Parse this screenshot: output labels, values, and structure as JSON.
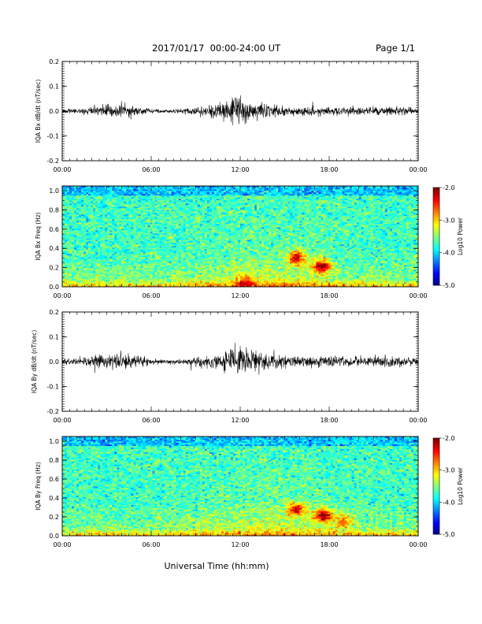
{
  "header": {
    "title": "2017/01/17  00:00-24:00 UT",
    "page": "Page 1/1"
  },
  "chart_data": [
    {
      "type": "line",
      "ylabel": "IQA Bx dB/dt (nT/sec)",
      "xlim": [
        "00:00",
        "24:00"
      ],
      "ylim": [
        -0.2,
        0.2
      ],
      "xticks": [
        "00:00",
        "06:00",
        "12:00",
        "18:00",
        "00:00"
      ],
      "yticks": [
        "-0.2",
        "-0.1",
        "0.0",
        "0.1",
        "0.2"
      ],
      "envelope_x_hours": [
        0,
        1,
        2,
        3,
        4,
        5,
        6,
        7,
        8,
        9,
        10,
        11,
        11.5,
        12,
        12.5,
        13,
        14,
        15,
        16,
        17,
        18,
        19,
        20,
        21,
        22,
        23,
        24
      ],
      "envelope_amplitude": [
        0.01,
        0.012,
        0.022,
        0.03,
        0.042,
        0.028,
        0.012,
        0.01,
        0.012,
        0.018,
        0.035,
        0.05,
        0.07,
        0.085,
        0.06,
        0.045,
        0.03,
        0.025,
        0.022,
        0.025,
        0.022,
        0.02,
        0.022,
        0.024,
        0.025,
        0.022,
        0.018
      ]
    },
    {
      "type": "heatmap",
      "ylabel": "IQA Bx Freq (Hz)",
      "xlim": [
        "00:00",
        "24:00"
      ],
      "ylim": [
        0,
        1.05
      ],
      "xticks": [
        "00:00",
        "06:00",
        "12:00",
        "18:00",
        "00:00"
      ],
      "yticks": [
        "0.0",
        "0.2",
        "0.4",
        "0.6",
        "0.8",
        "1.0"
      ],
      "colorbar_label": "Log10 Power",
      "colorbar_ticks": [
        "-2.0",
        "-3.0",
        "-4.0",
        "-5.0"
      ],
      "zlim": [
        -5.0,
        -2.0
      ],
      "background_level": -3.7,
      "hotspots": [
        {
          "t_hours": 15.8,
          "f_hz": 0.3,
          "level": -2.4
        },
        {
          "t_hours": 17.5,
          "f_hz": 0.22,
          "level": -2.2
        },
        {
          "t_hours": 12.3,
          "f_hz": 0.05,
          "level": -2.9
        }
      ]
    },
    {
      "type": "line",
      "ylabel": "IQA By dB/dt (nT/sec)",
      "xlim": [
        "00:00",
        "24:00"
      ],
      "ylim": [
        -0.2,
        0.2
      ],
      "xticks": [
        "00:00",
        "06:00",
        "12:00",
        "18:00",
        "00:00"
      ],
      "yticks": [
        "-0.2",
        "-0.1",
        "0.0",
        "0.1",
        "0.2"
      ],
      "envelope_x_hours": [
        0,
        1,
        2,
        3,
        4,
        5,
        6,
        7,
        8,
        9,
        10,
        11,
        11.5,
        12,
        12.5,
        13,
        14,
        15,
        16,
        17,
        18,
        19,
        20,
        21,
        22,
        23,
        24
      ],
      "envelope_amplitude": [
        0.015,
        0.02,
        0.03,
        0.035,
        0.045,
        0.032,
        0.015,
        0.012,
        0.015,
        0.022,
        0.035,
        0.05,
        0.07,
        0.09,
        0.065,
        0.05,
        0.035,
        0.03,
        0.028,
        0.03,
        0.028,
        0.025,
        0.025,
        0.028,
        0.03,
        0.025,
        0.02
      ]
    },
    {
      "type": "heatmap",
      "ylabel": "IQA By Freq (Hz)",
      "xlim": [
        "00:00",
        "24:00"
      ],
      "ylim": [
        0,
        1.05
      ],
      "xticks": [
        "00:00",
        "06:00",
        "12:00",
        "18:00",
        "00:00"
      ],
      "yticks": [
        "0.0",
        "0.2",
        "0.4",
        "0.6",
        "0.8",
        "1.0"
      ],
      "colorbar_label": "Log10 Power",
      "colorbar_ticks": [
        "-2.0",
        "-3.0",
        "-4.0",
        "-5.0"
      ],
      "zlim": [
        -5.0,
        -2.0
      ],
      "background_level": -3.7,
      "hotspots": [
        {
          "t_hours": 15.8,
          "f_hz": 0.28,
          "level": -2.4
        },
        {
          "t_hours": 17.6,
          "f_hz": 0.22,
          "level": -2.2
        },
        {
          "t_hours": 19.0,
          "f_hz": 0.15,
          "level": -2.9
        }
      ]
    }
  ],
  "xlabel": "Universal Time (hh:mm)"
}
